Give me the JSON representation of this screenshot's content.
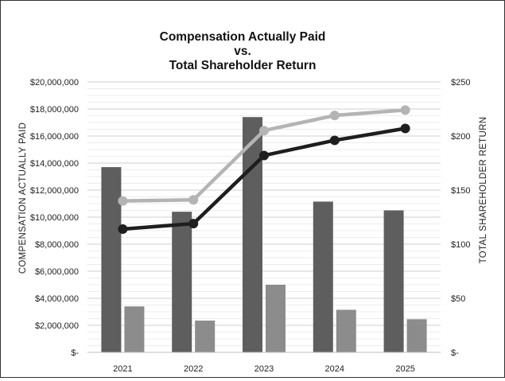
{
  "chart_data": {
    "type": "bar",
    "title": [
      "Compensation Actually Paid",
      "vs.",
      "Total Shareholder Return"
    ],
    "categories": [
      "2021",
      "2022",
      "2023",
      "2024",
      "2025"
    ],
    "ylabel": "COMPENSATION ACTUALLY PAID",
    "y2label": "TOTAL SHAREHOLDER RETURN",
    "ylim": [
      0,
      20000000
    ],
    "y2lim": [
      0,
      250
    ],
    "y_ticks": [
      "$-",
      "$2,000,000",
      "$4,000,000",
      "$6,000,000",
      "$8,000,000",
      "$10,000,000",
      "$12,000,000",
      "$14,000,000",
      "$16,000,000",
      "$18,000,000",
      "$20,000,000"
    ],
    "y2_ticks": [
      "$-",
      "$50",
      "$100",
      "$150",
      "$200",
      "$250"
    ],
    "grid": true,
    "legend": "none",
    "series": [
      {
        "type": "bar",
        "axis": "left",
        "color": "#5e5e5e",
        "values": [
          13700000,
          10400000,
          17400000,
          11150000,
          10500000
        ]
      },
      {
        "type": "bar",
        "axis": "left",
        "color": "#8c8c8c",
        "values": [
          3400000,
          2350000,
          5000000,
          3150000,
          2450000
        ]
      },
      {
        "type": "line",
        "axis": "right",
        "color": "#b4b4b4",
        "values": [
          140,
          141,
          205,
          219,
          224
        ]
      },
      {
        "type": "line",
        "axis": "right",
        "color": "#1e1e1e",
        "values": [
          114,
          119,
          182,
          196,
          207
        ]
      }
    ]
  }
}
